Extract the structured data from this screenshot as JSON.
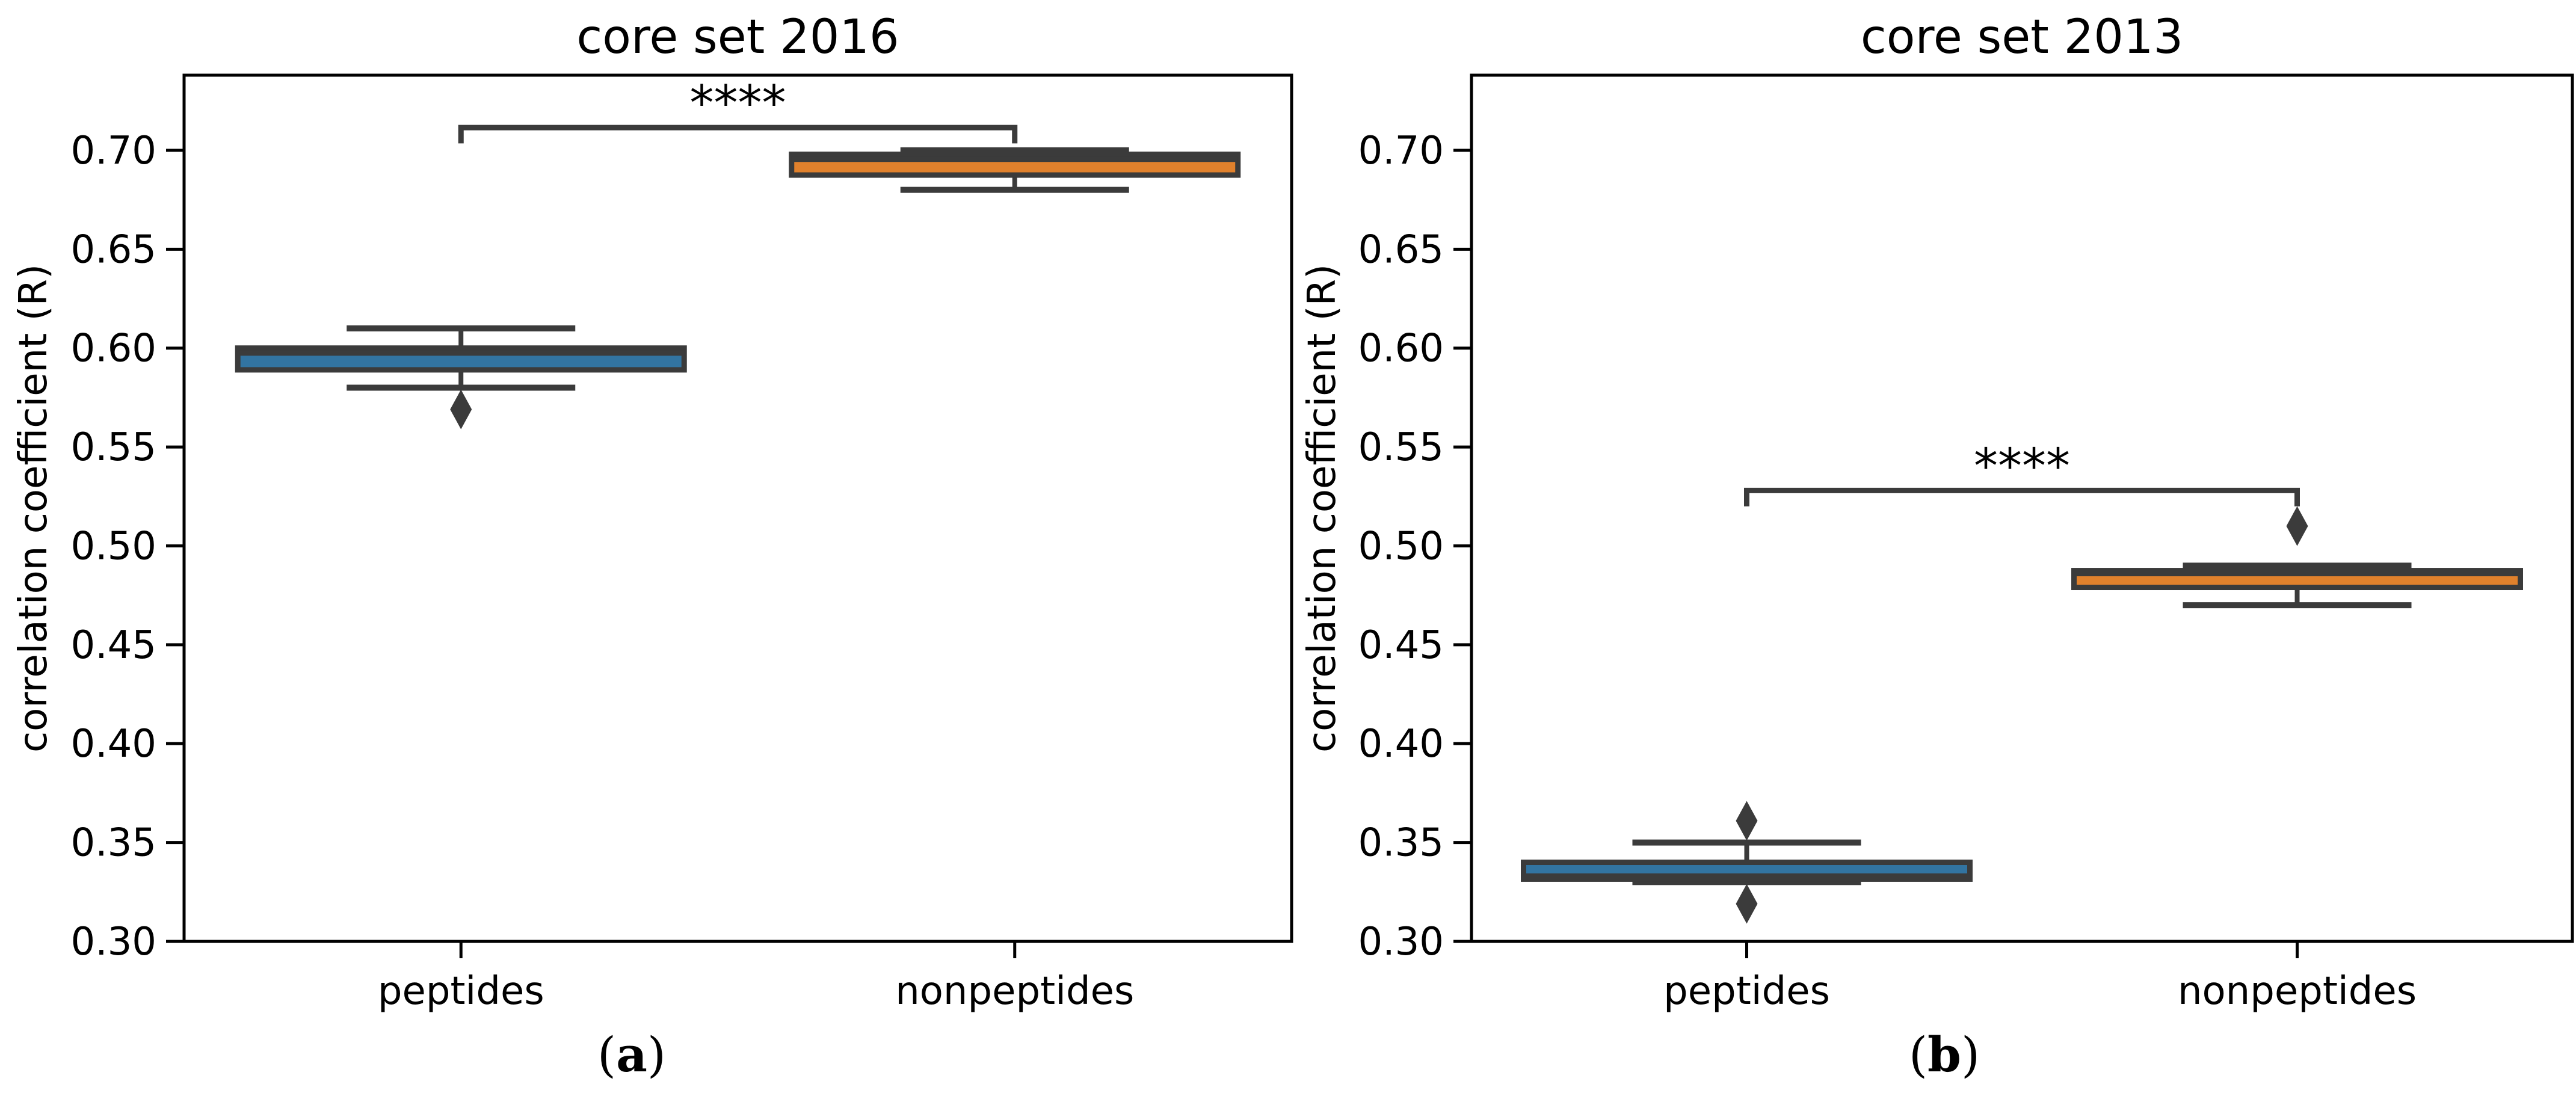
{
  "figure": {
    "captions": [
      {
        "open": "(",
        "letter": "a",
        "close": ")"
      },
      {
        "open": "(",
        "letter": "b",
        "close": ")"
      }
    ]
  },
  "style": {
    "background": "#ffffff",
    "spine_color": "#000000",
    "box_edge_color": "#3B3B3B",
    "text_color": "#000000",
    "blue": "#3274A1",
    "orange": "#E1812C"
  },
  "chart_data": [
    {
      "type": "box",
      "title": "core set 2016",
      "ylabel": "correlation coefficient (R)",
      "xlabel": "",
      "ylim": [
        0.3,
        0.738
      ],
      "yticks": [
        0.3,
        0.35,
        0.4,
        0.45,
        0.5,
        0.55,
        0.6,
        0.65,
        0.7
      ],
      "grid": false,
      "legend": null,
      "categories": [
        "peptides",
        "nonpeptides"
      ],
      "series": [
        {
          "name": "peptides",
          "color": "#3274A1",
          "whisker_low": 0.58,
          "q1": 0.589,
          "median": 0.5975,
          "q3": 0.6,
          "whisker_high": 0.61,
          "outliers": [
            0.569
          ]
        },
        {
          "name": "nonpeptides",
          "color": "#E1812C",
          "whisker_low": 0.68,
          "q1": 0.6875,
          "median": 0.6955,
          "q3": 0.698,
          "whisker_high": 0.7,
          "outliers": []
        }
      ],
      "significance": {
        "label": "****",
        "between": [
          "peptides",
          "nonpeptides"
        ],
        "bar_y": 0.7115,
        "tick_drop_to": 0.7035,
        "label_y": 0.7155
      }
    },
    {
      "type": "box",
      "title": "core set 2013",
      "ylabel": "correlation coefficient (R)",
      "xlabel": "",
      "ylim": [
        0.3,
        0.738
      ],
      "yticks": [
        0.3,
        0.35,
        0.4,
        0.45,
        0.5,
        0.55,
        0.6,
        0.65,
        0.7
      ],
      "grid": false,
      "legend": null,
      "categories": [
        "peptides",
        "nonpeptides"
      ],
      "series": [
        {
          "name": "peptides",
          "color": "#3274A1",
          "whisker_low": 0.33,
          "q1": 0.3315,
          "median": 0.333,
          "q3": 0.34,
          "whisker_high": 0.35,
          "outliers": [
            0.361,
            0.319
          ]
        },
        {
          "name": "nonpeptides",
          "color": "#E1812C",
          "whisker_low": 0.47,
          "q1": 0.479,
          "median": 0.486,
          "q3": 0.4875,
          "whisker_high": 0.49,
          "outliers": [
            0.51
          ]
        }
      ],
      "significance": {
        "label": "****",
        "between": [
          "peptides",
          "nonpeptides"
        ],
        "bar_y": 0.528,
        "tick_drop_to": 0.52,
        "label_y": 0.532
      }
    }
  ]
}
